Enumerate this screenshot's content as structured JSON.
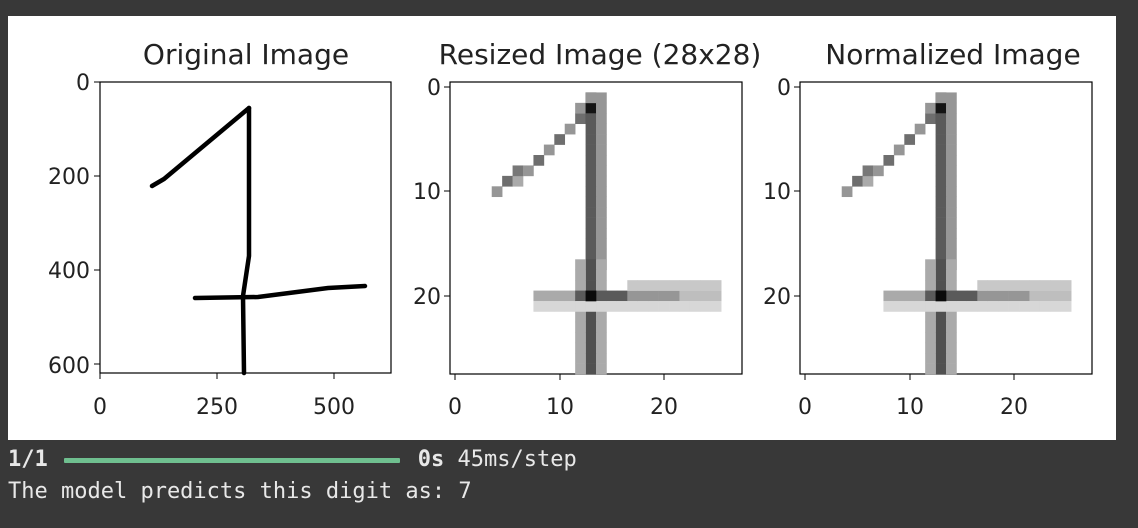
{
  "figure": {
    "panels": [
      {
        "title": "Original Image",
        "xticks": [
          "0",
          "250",
          "500"
        ],
        "yticks": [
          "0",
          "200",
          "400",
          "600"
        ]
      },
      {
        "title": "Resized Image (28x28)",
        "xticks": [
          "0",
          "10",
          "20"
        ],
        "yticks": [
          "0",
          "10",
          "20"
        ]
      },
      {
        "title": "Normalized Image",
        "xticks": [
          "0",
          "10",
          "20"
        ],
        "yticks": [
          "0",
          "10",
          "20"
        ]
      }
    ]
  },
  "console": {
    "progress_count": "1/1",
    "progress_time": "0s",
    "progress_rate": "45ms/step",
    "progress_fraction": 1.0,
    "prediction_text": "The model predicts this digit as: 7"
  },
  "colors": {
    "background": "#383838",
    "progress_bar": "#6fbf8f",
    "figure_bg": "#ffffff"
  }
}
